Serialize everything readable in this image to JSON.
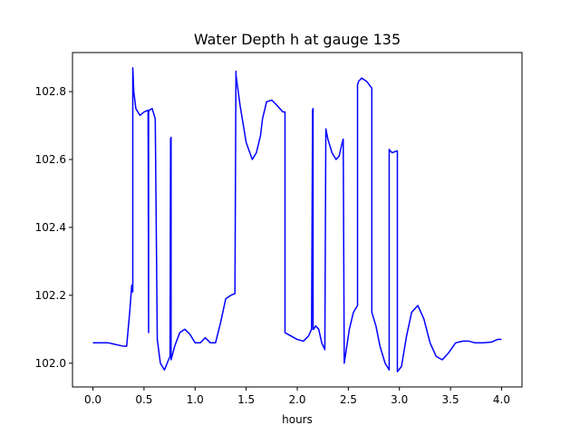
{
  "chart_data": {
    "type": "line",
    "title": "Water Depth h at gauge 135",
    "xlabel": "hours",
    "ylabel": "",
    "xlim": [
      -0.2,
      4.2
    ],
    "ylim": [
      101.93,
      102.915
    ],
    "xticks": [
      0.0,
      0.5,
      1.0,
      1.5,
      2.0,
      2.5,
      3.0,
      3.5,
      4.0
    ],
    "xtick_labels": [
      "0.0",
      "0.5",
      "1.0",
      "1.5",
      "2.0",
      "2.5",
      "3.0",
      "3.5",
      "4.0"
    ],
    "yticks": [
      102.0,
      102.2,
      102.4,
      102.6,
      102.8
    ],
    "ytick_labels": [
      "102.0",
      "102.2",
      "102.4",
      "102.6",
      "102.8"
    ],
    "grid": false,
    "legend": "none",
    "series": [
      {
        "color": "#0000ff",
        "x": [
          0.0,
          0.15,
          0.3,
          0.33,
          0.36,
          0.38,
          0.39,
          0.39,
          0.4,
          0.42,
          0.46,
          0.5,
          0.54,
          0.545,
          0.545,
          0.55,
          0.55,
          0.58,
          0.61,
          0.63,
          0.63,
          0.66,
          0.7,
          0.74,
          0.755,
          0.76,
          0.765,
          0.765,
          0.8,
          0.85,
          0.9,
          0.95,
          1.0,
          1.05,
          1.1,
          1.15,
          1.2,
          1.25,
          1.3,
          1.35,
          1.39,
          1.4,
          1.4,
          1.44,
          1.5,
          1.56,
          1.6,
          1.64,
          1.66,
          1.7,
          1.75,
          1.8,
          1.86,
          1.88,
          1.88,
          1.94,
          2.0,
          2.06,
          2.11,
          2.14,
          2.15,
          2.155,
          2.155,
          2.16,
          2.18,
          2.21,
          2.24,
          2.27,
          2.28,
          2.28,
          2.3,
          2.34,
          2.38,
          2.41,
          2.44,
          2.45,
          2.46,
          2.46,
          2.48,
          2.51,
          2.55,
          2.59,
          2.59,
          2.6,
          2.63,
          2.68,
          2.73,
          2.73,
          2.77,
          2.81,
          2.86,
          2.9,
          2.9,
          2.91,
          2.93,
          2.97,
          2.98,
          2.98,
          3.02,
          3.07,
          3.12,
          3.18,
          3.24,
          3.3,
          3.36,
          3.42,
          3.48,
          3.55,
          3.62,
          3.68,
          3.74,
          3.82,
          3.9,
          3.96,
          4.0
        ],
        "y": [
          102.06,
          102.06,
          102.05,
          102.05,
          102.15,
          102.23,
          102.21,
          102.87,
          102.8,
          102.75,
          102.73,
          102.74,
          102.745,
          102.09,
          102.74,
          102.745,
          102.745,
          102.75,
          102.72,
          102.07,
          102.07,
          102.0,
          101.98,
          102.01,
          102.02,
          102.66,
          102.665,
          102.01,
          102.05,
          102.09,
          102.1,
          102.085,
          102.06,
          102.06,
          102.075,
          102.06,
          102.06,
          102.12,
          102.19,
          102.2,
          102.205,
          102.86,
          102.85,
          102.76,
          102.65,
          102.6,
          102.62,
          102.67,
          102.72,
          102.77,
          102.775,
          102.76,
          102.74,
          102.74,
          102.09,
          102.08,
          102.07,
          102.065,
          102.08,
          102.1,
          102.745,
          102.75,
          102.1,
          102.1,
          102.11,
          102.1,
          102.06,
          102.04,
          102.69,
          102.69,
          102.66,
          102.62,
          102.6,
          102.61,
          102.65,
          102.66,
          102.0,
          102.0,
          102.04,
          102.1,
          102.15,
          102.17,
          102.82,
          102.83,
          102.84,
          102.83,
          102.81,
          102.15,
          102.11,
          102.05,
          102.0,
          101.98,
          102.63,
          102.625,
          102.62,
          102.625,
          102.625,
          101.975,
          101.99,
          102.08,
          102.15,
          102.17,
          102.13,
          102.06,
          102.02,
          102.01,
          102.03,
          102.06,
          102.065,
          102.065,
          102.06,
          102.06,
          102.062,
          102.07,
          102.07
        ]
      }
    ]
  }
}
